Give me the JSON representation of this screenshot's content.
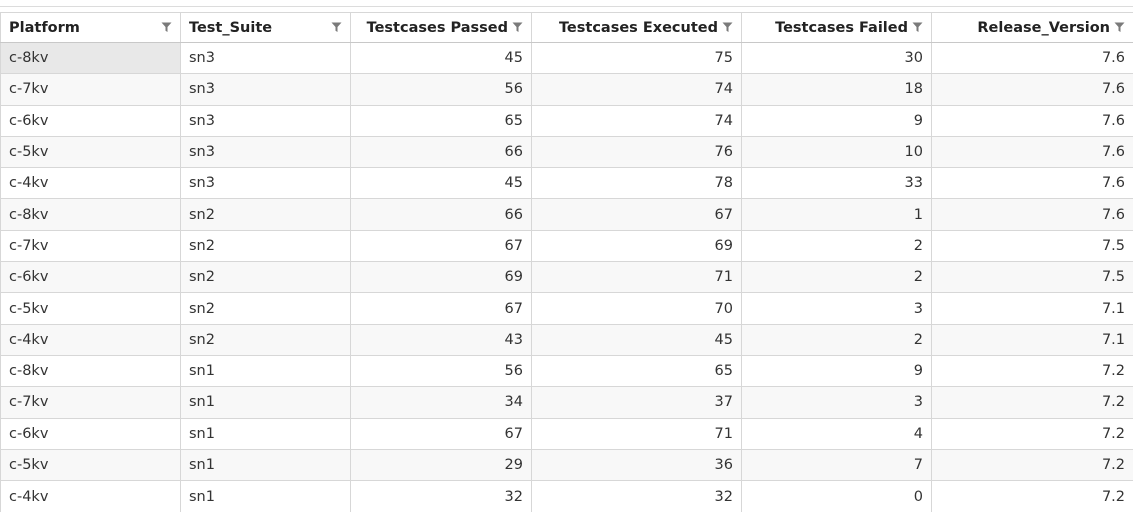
{
  "grid": {
    "columns": [
      {
        "label": "Platform",
        "align": "left"
      },
      {
        "label": "Test_Suite",
        "align": "left"
      },
      {
        "label": "Testcases Passed",
        "align": "right"
      },
      {
        "label": "Testcases Executed",
        "align": "right"
      },
      {
        "label": "Testcases Failed",
        "align": "right"
      },
      {
        "label": "Release_Version",
        "align": "right"
      }
    ],
    "filter_icon": "filter-funnel-icon",
    "selected_cell": {
      "row": 0,
      "col": 0
    },
    "rows": [
      [
        "c-8kv",
        "sn3",
        "45",
        "75",
        "30",
        "7.6"
      ],
      [
        "c-7kv",
        "sn3",
        "56",
        "74",
        "18",
        "7.6"
      ],
      [
        "c-6kv",
        "sn3",
        "65",
        "74",
        "9",
        "7.6"
      ],
      [
        "c-5kv",
        "sn3",
        "66",
        "76",
        "10",
        "7.6"
      ],
      [
        "c-4kv",
        "sn3",
        "45",
        "78",
        "33",
        "7.6"
      ],
      [
        "c-8kv",
        "sn2",
        "66",
        "67",
        "1",
        "7.6"
      ],
      [
        "c-7kv",
        "sn2",
        "67",
        "69",
        "2",
        "7.5"
      ],
      [
        "c-6kv",
        "sn2",
        "69",
        "71",
        "2",
        "7.5"
      ],
      [
        "c-5kv",
        "sn2",
        "67",
        "70",
        "3",
        "7.1"
      ],
      [
        "c-4kv",
        "sn2",
        "43",
        "45",
        "2",
        "7.1"
      ],
      [
        "c-8kv",
        "sn1",
        "56",
        "65",
        "9",
        "7.2"
      ],
      [
        "c-7kv",
        "sn1",
        "34",
        "37",
        "3",
        "7.2"
      ],
      [
        "c-6kv",
        "sn1",
        "67",
        "71",
        "4",
        "7.2"
      ],
      [
        "c-5kv",
        "sn1",
        "29",
        "36",
        "7",
        "7.2"
      ],
      [
        "c-4kv",
        "sn1",
        "32",
        "32",
        "0",
        "7.2"
      ]
    ]
  },
  "colors": {
    "border": "#d7d7d7",
    "row_alt": "#f8f8f8",
    "selected": "#e8e8e8",
    "icon": "#7a7a7a"
  }
}
